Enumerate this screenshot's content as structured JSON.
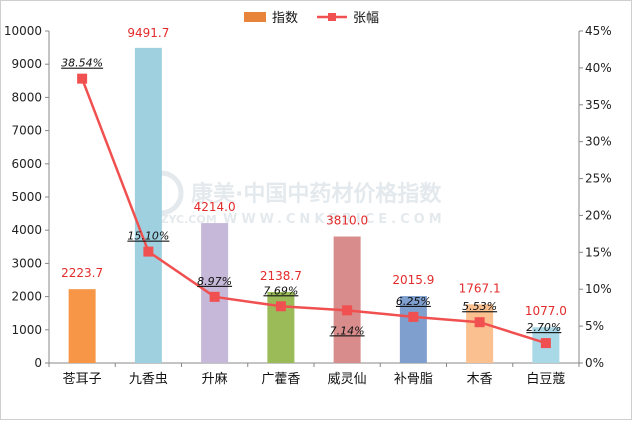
{
  "chart_data": {
    "type": "bar",
    "categories": [
      "苍耳子",
      "九香虫",
      "升麻",
      "广藿香",
      "威灵仙",
      "补骨脂",
      "木香",
      "白豆蔻"
    ],
    "series": [
      {
        "name": "指数",
        "type": "bar",
        "axis": "left",
        "values": [
          2223.7,
          9491.7,
          4214.0,
          2138.7,
          3810.0,
          2015.9,
          1767.1,
          1077.0
        ],
        "labels": [
          "2223.7",
          "9491.7",
          "4214.0",
          "2138.7",
          "3810.0",
          "2015.9",
          "1767.1",
          "1077.0"
        ],
        "colors": [
          "#f79646",
          "#9ed0e0",
          "#c6b8d8",
          "#9bbb59",
          "#d88c8c",
          "#7f9fcf",
          "#fac090",
          "#a9d8e6"
        ]
      },
      {
        "name": "张幅",
        "type": "line",
        "axis": "right",
        "color": "#f05050",
        "values": [
          38.54,
          15.1,
          8.97,
          7.69,
          7.14,
          6.25,
          5.53,
          2.7
        ],
        "labels": [
          "38.54%",
          "15.10%",
          "8.97%",
          "7.69%",
          "7.14%",
          "6.25%",
          "5.53%",
          "2.70%"
        ]
      }
    ],
    "ylim": [
      0,
      10000
    ],
    "yticks": [
      "0",
      "1000",
      "2000",
      "3000",
      "4000",
      "5000",
      "6000",
      "7000",
      "8000",
      "9000",
      "10000"
    ],
    "y2lim": [
      0,
      45
    ],
    "y2ticks": [
      "0%",
      "5%",
      "10%",
      "15%",
      "20%",
      "25%",
      "30%",
      "35%",
      "40%",
      "45%"
    ],
    "legend_position": "top-center",
    "grid": false
  },
  "watermark": {
    "text": "康美·中国中药材价格指数",
    "subtext": "KMZYC.COM",
    "mid": "WWW.CNKPRICE.COM"
  }
}
